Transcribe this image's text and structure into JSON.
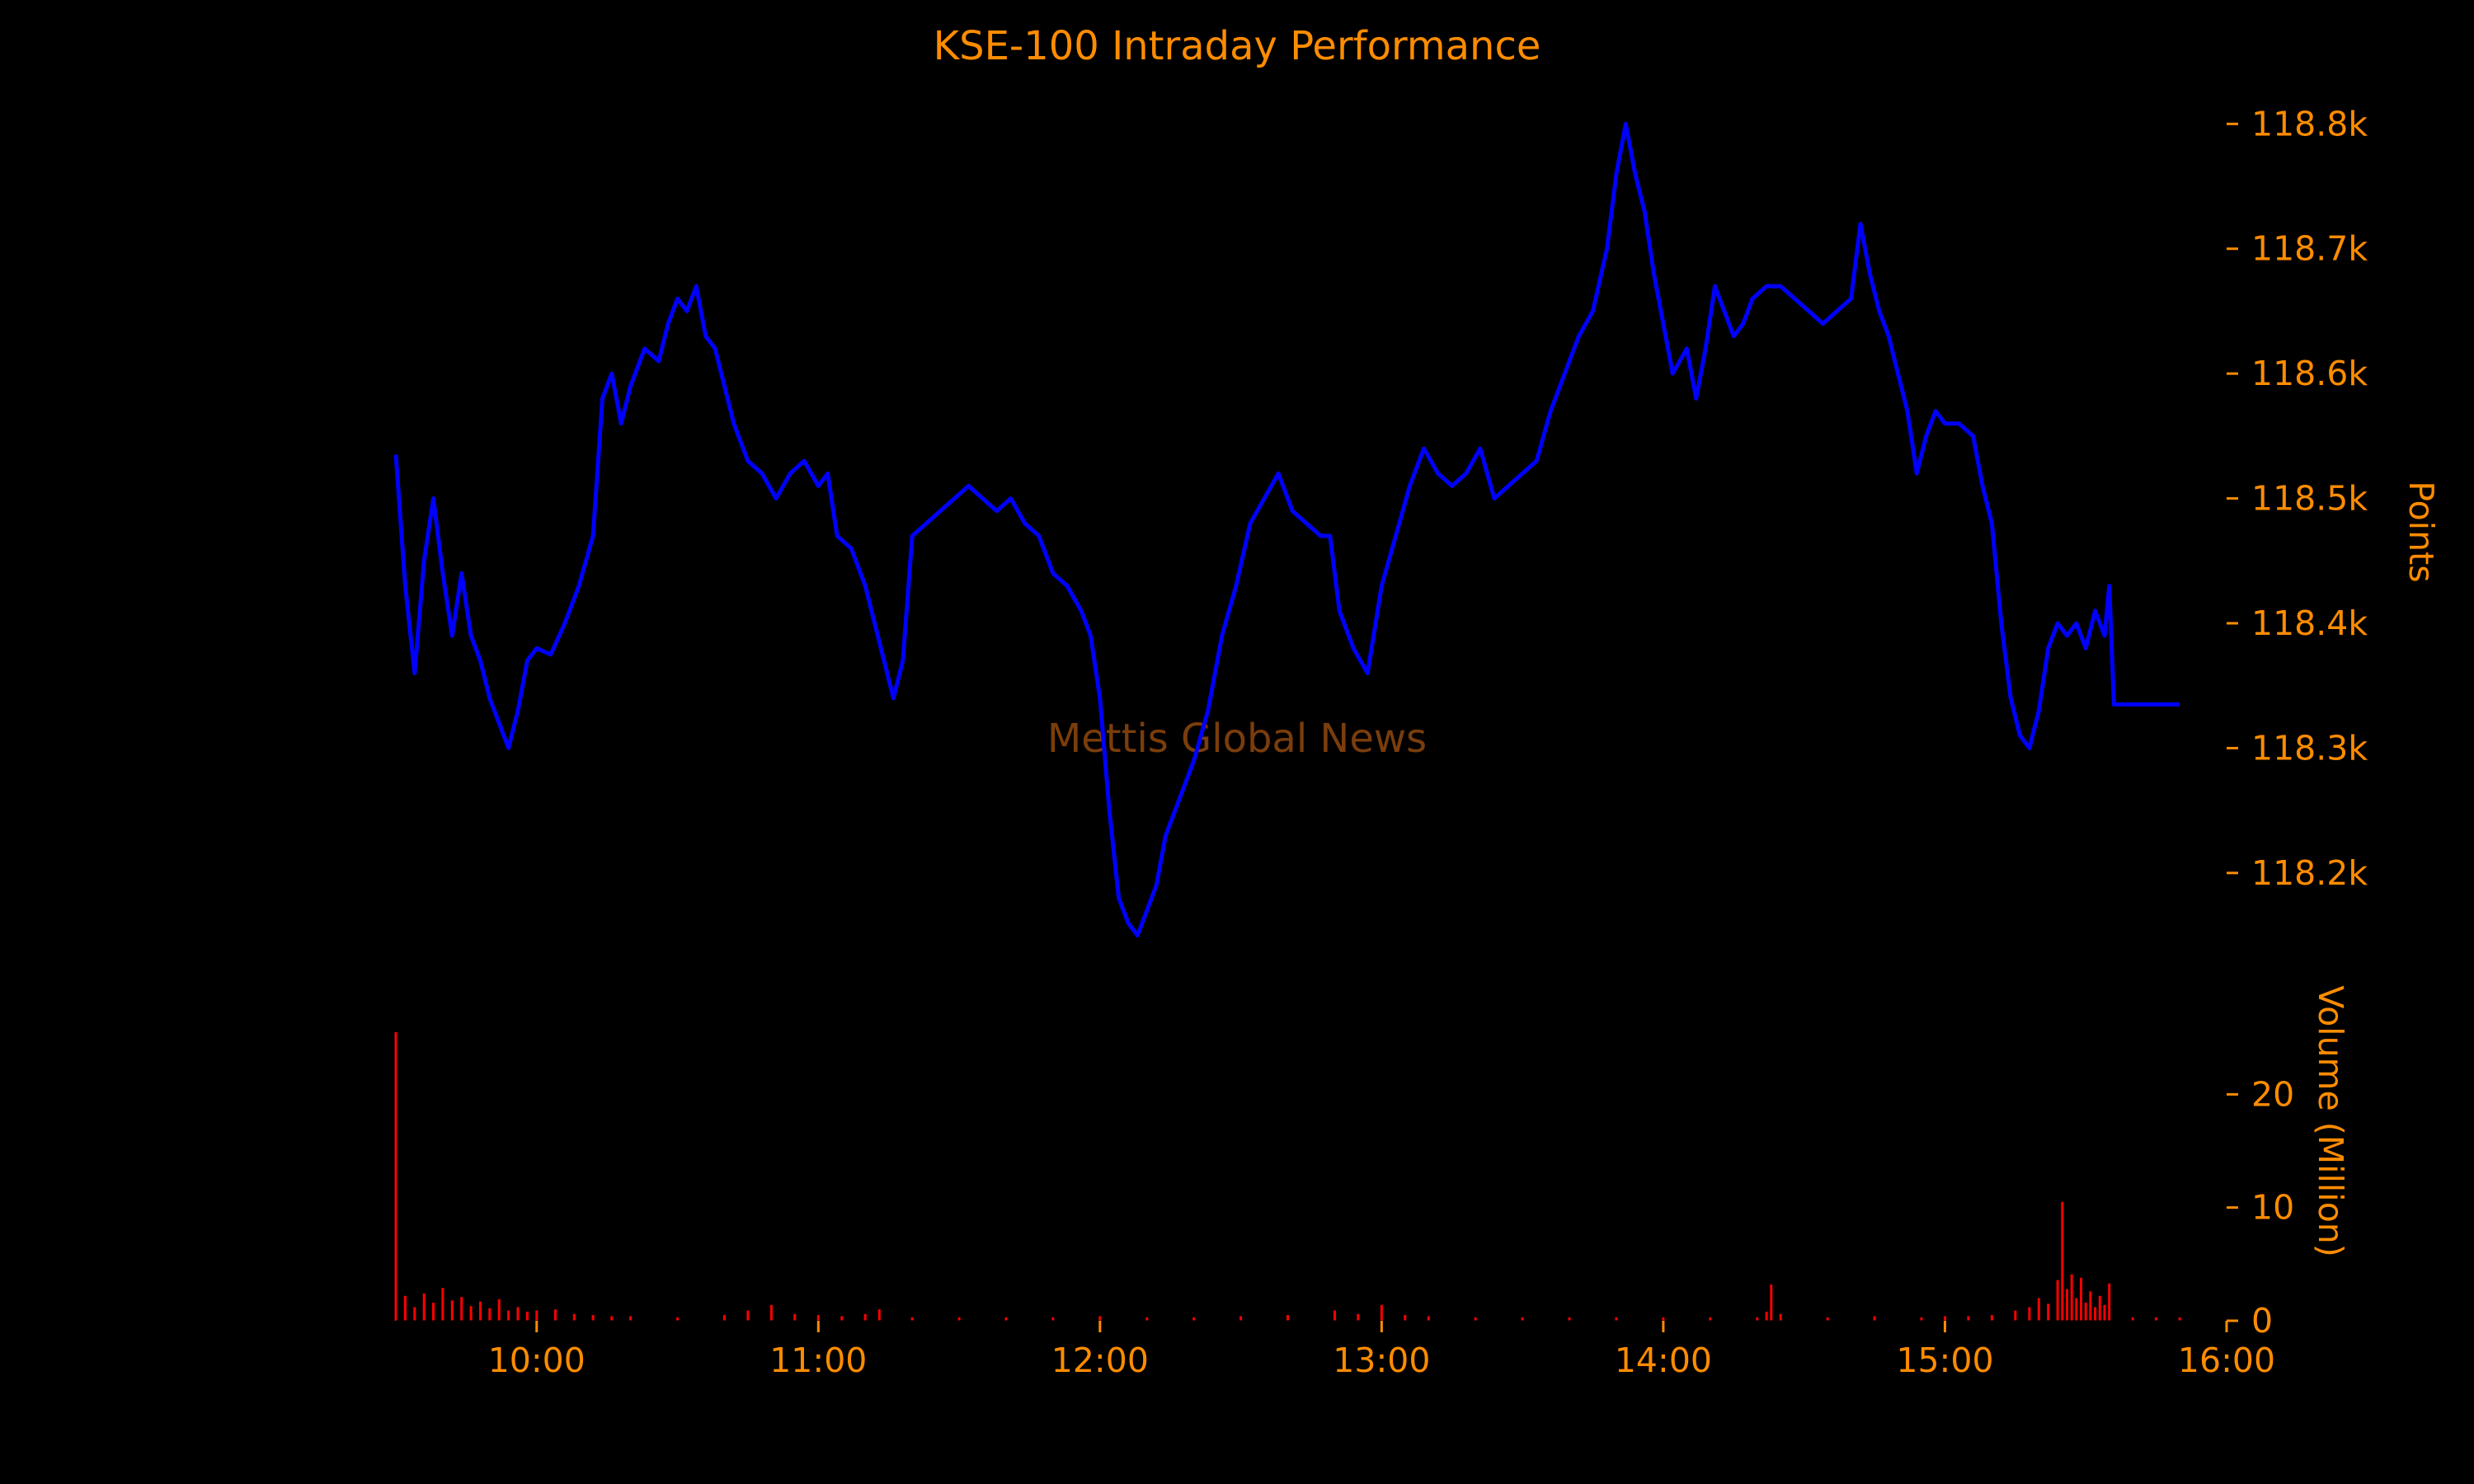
{
  "colors": {
    "background": "#000000",
    "text": "#ff8c00",
    "price_line": "#0000ff",
    "volume_bars": "#ff0000",
    "watermark": "#7a3d0b"
  },
  "watermark": "Mettis Global News",
  "chart_data": [
    {
      "type": "line",
      "title": "KSE-100 Intraday Performance",
      "xlabel": "",
      "ylabel": "Points",
      "y_axis_side": "right",
      "ylim": [
        118120,
        118820
      ],
      "yticks": [
        118200,
        118300,
        118400,
        118500,
        118600,
        118700,
        118800
      ],
      "ytick_labels": [
        "118.2k",
        "118.3k",
        "118.4k",
        "118.5k",
        "118.6k",
        "118.7k",
        "118.8k"
      ],
      "grid": false,
      "series": [
        {
          "points": [
            [
              "09:30",
              118535
            ],
            [
              "09:32",
              118430
            ],
            [
              "09:34",
              118360
            ],
            [
              "09:36",
              118450
            ],
            [
              "09:38",
              118500
            ],
            [
              "09:40",
              118440
            ],
            [
              "09:42",
              118390
            ],
            [
              "09:44",
              118440
            ],
            [
              "09:46",
              118390
            ],
            [
              "09:48",
              118370
            ],
            [
              "09:50",
              118340
            ],
            [
              "09:52",
              118320
            ],
            [
              "09:54",
              118300
            ],
            [
              "09:56",
              118330
            ],
            [
              "09:58",
              118370
            ],
            [
              "10:00",
              118380
            ],
            [
              "10:03",
              118375
            ],
            [
              "10:06",
              118400
            ],
            [
              "10:09",
              118430
            ],
            [
              "10:12",
              118470
            ],
            [
              "10:14",
              118580
            ],
            [
              "10:16",
              118600
            ],
            [
              "10:18",
              118560
            ],
            [
              "10:20",
              118590
            ],
            [
              "10:23",
              118620
            ],
            [
              "10:26",
              118610
            ],
            [
              "10:28",
              118640
            ],
            [
              "10:30",
              118660
            ],
            [
              "10:32",
              118650
            ],
            [
              "10:34",
              118670
            ],
            [
              "10:36",
              118630
            ],
            [
              "10:38",
              118620
            ],
            [
              "10:40",
              118590
            ],
            [
              "10:42",
              118560
            ],
            [
              "10:45",
              118530
            ],
            [
              "10:48",
              118520
            ],
            [
              "10:51",
              118500
            ],
            [
              "10:54",
              118520
            ],
            [
              "10:57",
              118530
            ],
            [
              "11:00",
              118510
            ],
            [
              "11:02",
              118520
            ],
            [
              "11:04",
              118470
            ],
            [
              "11:07",
              118460
            ],
            [
              "11:10",
              118430
            ],
            [
              "11:12",
              118400
            ],
            [
              "11:14",
              118370
            ],
            [
              "11:16",
              118340
            ],
            [
              "11:18",
              118370
            ],
            [
              "11:20",
              118470
            ],
            [
              "11:23",
              118480
            ],
            [
              "11:26",
              118490
            ],
            [
              "11:29",
              118500
            ],
            [
              "11:32",
              118510
            ],
            [
              "11:35",
              118500
            ],
            [
              "11:38",
              118490
            ],
            [
              "11:41",
              118500
            ],
            [
              "11:44",
              118480
            ],
            [
              "11:47",
              118470
            ],
            [
              "11:50",
              118440
            ],
            [
              "11:53",
              118430
            ],
            [
              "11:56",
              118410
            ],
            [
              "11:58",
              118390
            ],
            [
              "12:00",
              118340
            ],
            [
              "12:02",
              118250
            ],
            [
              "12:04",
              118180
            ],
            [
              "12:06",
              118160
            ],
            [
              "12:08",
              118150
            ],
            [
              "12:10",
              118170
            ],
            [
              "12:12",
              118190
            ],
            [
              "12:14",
              118230
            ],
            [
              "12:17",
              118260
            ],
            [
              "12:20",
              118290
            ],
            [
              "12:23",
              118330
            ],
            [
              "12:26",
              118390
            ],
            [
              "12:29",
              118430
            ],
            [
              "12:32",
              118480
            ],
            [
              "12:35",
              118500
            ],
            [
              "12:38",
              118520
            ],
            [
              "12:41",
              118490
            ],
            [
              "12:44",
              118480
            ],
            [
              "12:47",
              118470
            ],
            [
              "12:49",
              118470
            ],
            [
              "12:51",
              118410
            ],
            [
              "12:54",
              118380
            ],
            [
              "12:57",
              118360
            ],
            [
              "13:00",
              118430
            ],
            [
              "13:03",
              118470
            ],
            [
              "13:06",
              118510
            ],
            [
              "13:09",
              118540
            ],
            [
              "13:12",
              118520
            ],
            [
              "13:15",
              118510
            ],
            [
              "13:18",
              118520
            ],
            [
              "13:21",
              118540
            ],
            [
              "13:24",
              118500
            ],
            [
              "13:27",
              118510
            ],
            [
              "13:30",
              118520
            ],
            [
              "13:33",
              118530
            ],
            [
              "13:36",
              118570
            ],
            [
              "13:39",
              118600
            ],
            [
              "13:42",
              118630
            ],
            [
              "13:45",
              118650
            ],
            [
              "13:48",
              118700
            ],
            [
              "13:50",
              118760
            ],
            [
              "13:52",
              118800
            ],
            [
              "13:54",
              118760
            ],
            [
              "13:56",
              118730
            ],
            [
              "13:58",
              118680
            ],
            [
              "14:00",
              118640
            ],
            [
              "14:02",
              118600
            ],
            [
              "14:05",
              118620
            ],
            [
              "14:07",
              118580
            ],
            [
              "14:09",
              118620
            ],
            [
              "14:11",
              118670
            ],
            [
              "14:13",
              118650
            ],
            [
              "14:15",
              118630
            ],
            [
              "14:17",
              118640
            ],
            [
              "14:19",
              118660
            ],
            [
              "14:22",
              118670
            ],
            [
              "14:25",
              118670
            ],
            [
              "14:28",
              118660
            ],
            [
              "14:31",
              118650
            ],
            [
              "14:34",
              118640
            ],
            [
              "14:37",
              118650
            ],
            [
              "14:40",
              118660
            ],
            [
              "14:42",
              118720
            ],
            [
              "14:44",
              118680
            ],
            [
              "14:46",
              118650
            ],
            [
              "14:48",
              118630
            ],
            [
              "14:50",
              118600
            ],
            [
              "14:52",
              118570
            ],
            [
              "14:54",
              118520
            ],
            [
              "14:56",
              118550
            ],
            [
              "14:58",
              118570
            ],
            [
              "15:00",
              118560
            ],
            [
              "15:03",
              118560
            ],
            [
              "15:06",
              118550
            ],
            [
              "15:08",
              118510
            ],
            [
              "15:10",
              118480
            ],
            [
              "15:12",
              118400
            ],
            [
              "15:14",
              118340
            ],
            [
              "15:16",
              118310
            ],
            [
              "15:18",
              118300
            ],
            [
              "15:20",
              118330
            ],
            [
              "15:22",
              118380
            ],
            [
              "15:24",
              118400
            ],
            [
              "15:26",
              118390
            ],
            [
              "15:28",
              118400
            ],
            [
              "15:30",
              118380
            ],
            [
              "15:32",
              118410
            ],
            [
              "15:34",
              118390
            ],
            [
              "15:35",
              118430
            ],
            [
              "15:36",
              118335
            ],
            [
              "15:50",
              118335
            ]
          ]
        }
      ]
    },
    {
      "type": "bar",
      "title": "",
      "xlabel": "",
      "ylabel": "Volume (Million)",
      "y_axis_side": "right",
      "ylim": [
        0,
        26
      ],
      "yticks": [
        0,
        10,
        20
      ],
      "xticks": [
        "10:00",
        "11:00",
        "12:00",
        "13:00",
        "14:00",
        "15:00",
        "16:00"
      ],
      "xlim": [
        "09:30",
        "16:00"
      ],
      "grid": false,
      "series": [
        {
          "points": [
            [
              "09:30",
              25.5
            ],
            [
              "09:32",
              2.2
            ],
            [
              "09:34",
              1.2
            ],
            [
              "09:36",
              2.4
            ],
            [
              "09:38",
              1.6
            ],
            [
              "09:40",
              2.9
            ],
            [
              "09:42",
              1.8
            ],
            [
              "09:44",
              2.1
            ],
            [
              "09:46",
              1.3
            ],
            [
              "09:48",
              1.7
            ],
            [
              "09:50",
              1.1
            ],
            [
              "09:52",
              1.9
            ],
            [
              "09:54",
              0.9
            ],
            [
              "09:56",
              1.2
            ],
            [
              "09:58",
              0.8
            ],
            [
              "10:00",
              0.9
            ],
            [
              "10:04",
              1.0
            ],
            [
              "10:08",
              0.6
            ],
            [
              "10:12",
              0.5
            ],
            [
              "10:16",
              0.4
            ],
            [
              "10:20",
              0.4
            ],
            [
              "10:30",
              0.3
            ],
            [
              "10:40",
              0.5
            ],
            [
              "10:45",
              0.9
            ],
            [
              "10:50",
              1.4
            ],
            [
              "10:55",
              0.6
            ],
            [
              "11:00",
              0.5
            ],
            [
              "11:05",
              0.4
            ],
            [
              "11:10",
              0.6
            ],
            [
              "11:13",
              1.0
            ],
            [
              "11:20",
              0.3
            ],
            [
              "11:30",
              0.3
            ],
            [
              "11:40",
              0.3
            ],
            [
              "11:50",
              0.3
            ],
            [
              "12:00",
              0.4
            ],
            [
              "12:10",
              0.3
            ],
            [
              "12:20",
              0.3
            ],
            [
              "12:30",
              0.4
            ],
            [
              "12:40",
              0.5
            ],
            [
              "12:50",
              0.9
            ],
            [
              "12:55",
              0.6
            ],
            [
              "13:00",
              1.4
            ],
            [
              "13:05",
              0.5
            ],
            [
              "13:10",
              0.4
            ],
            [
              "13:20",
              0.3
            ],
            [
              "13:30",
              0.3
            ],
            [
              "13:40",
              0.3
            ],
            [
              "13:50",
              0.3
            ],
            [
              "14:00",
              0.3
            ],
            [
              "14:10",
              0.3
            ],
            [
              "14:20",
              0.3
            ],
            [
              "14:22",
              0.8
            ],
            [
              "14:23",
              3.2
            ],
            [
              "14:25",
              0.6
            ],
            [
              "14:35",
              0.3
            ],
            [
              "14:45",
              0.4
            ],
            [
              "14:55",
              0.3
            ],
            [
              "15:00",
              0.4
            ],
            [
              "15:05",
              0.4
            ],
            [
              "15:10",
              0.5
            ],
            [
              "15:15",
              0.9
            ],
            [
              "15:18",
              1.2
            ],
            [
              "15:20",
              2.0
            ],
            [
              "15:22",
              1.5
            ],
            [
              "15:24",
              3.6
            ],
            [
              "15:25",
              10.5
            ],
            [
              "15:26",
              2.8
            ],
            [
              "15:27",
              4.1
            ],
            [
              "15:28",
              2.0
            ],
            [
              "15:29",
              3.8
            ],
            [
              "15:30",
              1.6
            ],
            [
              "15:31",
              2.6
            ],
            [
              "15:32",
              1.2
            ],
            [
              "15:33",
              2.2
            ],
            [
              "15:34",
              1.4
            ],
            [
              "15:35",
              3.3
            ],
            [
              "15:40",
              0.3
            ],
            [
              "15:45",
              0.3
            ],
            [
              "15:50",
              0.3
            ]
          ]
        }
      ]
    }
  ]
}
